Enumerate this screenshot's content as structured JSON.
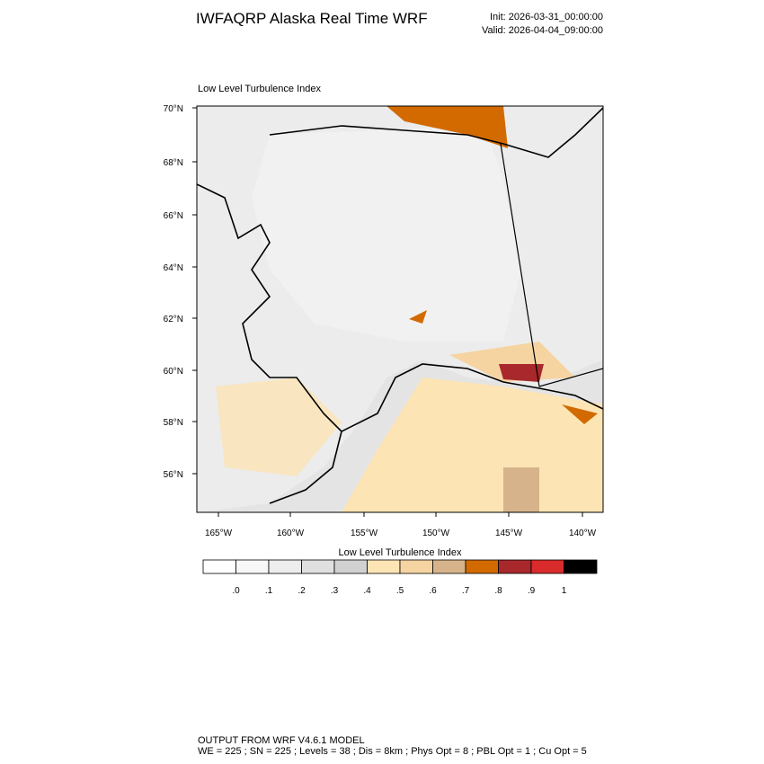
{
  "header": {
    "title": "IWFAQRP Alaska Real Time WRF",
    "init": "Init: 2026-03-31_00:00:00",
    "valid": "Valid: 2026-04-04_09:00:00"
  },
  "map": {
    "title": "Low Level Turbulence Index",
    "lat_labels": [
      "70°N",
      "68°N",
      "66°N",
      "64°N",
      "62°N",
      "60°N",
      "58°N",
      "56°N"
    ],
    "lon_labels": [
      "165°W",
      "160°W",
      "155°W",
      "150°W",
      "145°W",
      "140°W"
    ]
  },
  "colorbar": {
    "title": "Low Level Turbulence Index",
    "colors": [
      "#ffffff",
      "#f7f7f7",
      "#ededed",
      "#e0e0e0",
      "#d1d1d1",
      "#fde4b4",
      "#f5d4a2",
      "#d6b38a",
      "#d26a00",
      "#a8282c",
      "#d92b2b",
      "#000000"
    ],
    "labels": [
      ".0",
      ".1",
      ".2",
      ".3",
      ".4",
      ".5",
      ".6",
      ".7",
      ".8",
      ".9",
      "1"
    ]
  },
  "footer": {
    "line1": "OUTPUT FROM WRF V4.6.1 MODEL",
    "line2": "WE = 225 ; SN = 225 ; Levels = 38 ; Dis = 8km ; Phys Opt = 8 ; PBL Opt = 1 ; Cu Opt = 5"
  }
}
